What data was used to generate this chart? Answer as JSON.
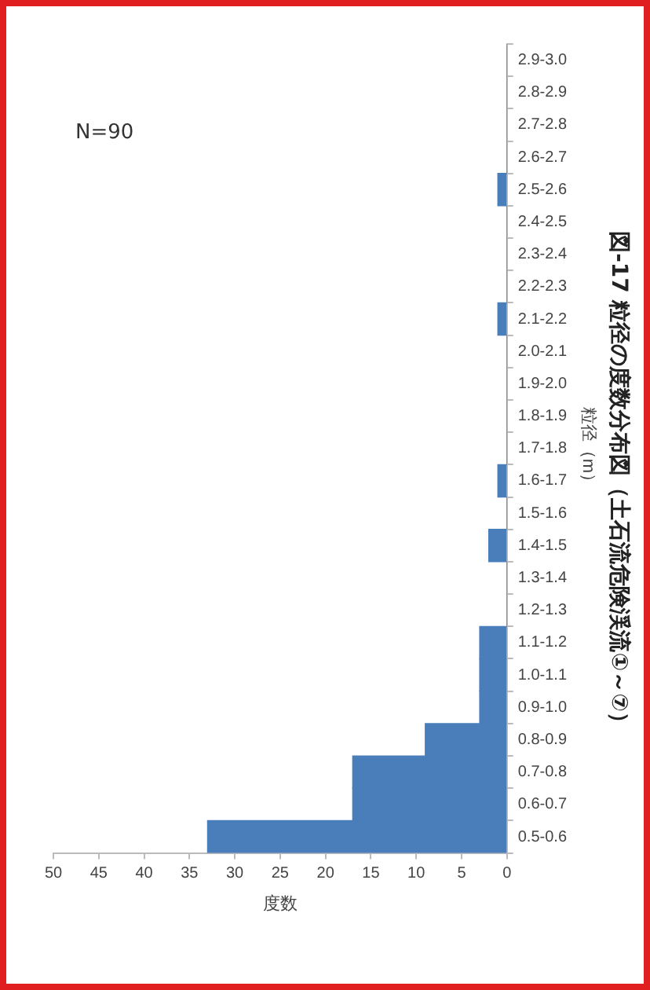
{
  "chart_data": {
    "type": "bar",
    "orientation": "horizontal",
    "title": "図-17 粒径の度数分布図（土石流危険渓流①～⑦）",
    "xlabel": "度数",
    "ylabel": "粒径（m）",
    "categories": [
      "2.9-3.0",
      "2.8-2.9",
      "2.7-2.8",
      "2.6-2.7",
      "2.5-2.6",
      "2.4-2.5",
      "2.3-2.4",
      "2.2-2.3",
      "2.1-2.2",
      "2.0-2.1",
      "1.9-2.0",
      "1.8-1.9",
      "1.7-1.8",
      "1.6-1.7",
      "1.5-1.6",
      "1.4-1.5",
      "1.3-1.4",
      "1.2-1.3",
      "1.1-1.2",
      "1.0-1.1",
      "0.9-1.0",
      "0.8-0.9",
      "0.7-0.8",
      "0.6-0.7",
      "0.5-0.6"
    ],
    "values": [
      0,
      0,
      0,
      0,
      1,
      0,
      0,
      0,
      1,
      0,
      0,
      0,
      0,
      1,
      0,
      2,
      0,
      0,
      3,
      3,
      3,
      9,
      17,
      17,
      33
    ],
    "color": "#4a7ebb",
    "xlim": [
      50,
      0
    ],
    "xticks": [
      50,
      45,
      40,
      35,
      30,
      25,
      20,
      15,
      10,
      5,
      0
    ],
    "annotations": [
      "N=90"
    ]
  }
}
